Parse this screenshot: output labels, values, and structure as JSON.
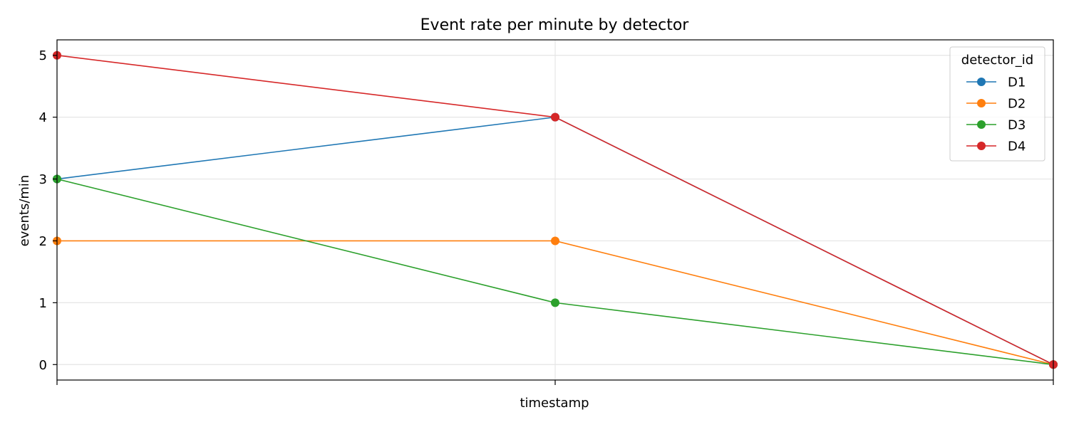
{
  "chart_data": {
    "type": "line",
    "title": "Event rate per minute by detector",
    "xlabel": "timestamp",
    "ylabel": "events/min",
    "x": [
      0,
      1,
      2
    ],
    "xlim": [
      0,
      2
    ],
    "ylim": [
      -0.25,
      5.25
    ],
    "yticks": [
      "0",
      "1",
      "2",
      "3",
      "4",
      "5"
    ],
    "grid": true,
    "legend": {
      "title": "detector_id",
      "placement": "top-right"
    },
    "series": [
      {
        "name": "D1",
        "color": "#1f77b4",
        "values": [
          3,
          4,
          0
        ]
      },
      {
        "name": "D2",
        "color": "#ff7f0e",
        "values": [
          2,
          2,
          0
        ]
      },
      {
        "name": "D3",
        "color": "#2ca02c",
        "values": [
          3,
          1,
          0
        ]
      },
      {
        "name": "D4",
        "color": "#d62728",
        "values": [
          5,
          4,
          0
        ]
      }
    ]
  }
}
